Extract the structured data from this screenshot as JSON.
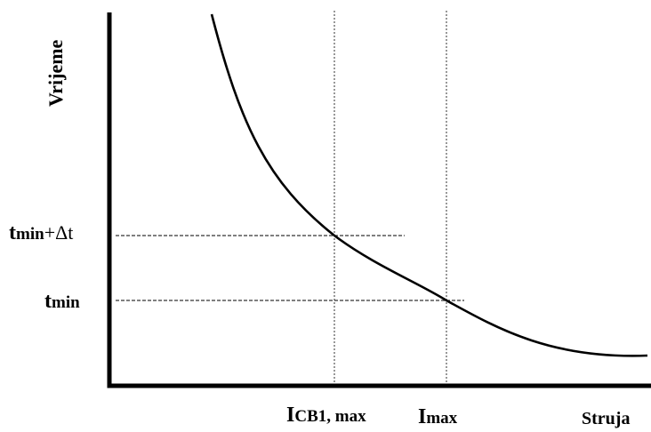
{
  "axes": {
    "y_title": "Vrijeme",
    "x_title": "Struja"
  },
  "y_markers": {
    "tmin_dt": {
      "t": "t",
      "sub": "min",
      "suffix": "+Δt"
    },
    "tmin": {
      "t": "t",
      "sub": "min"
    }
  },
  "x_markers": {
    "icb1max": {
      "i": "I",
      "sub": "CB1, max"
    },
    "imax": {
      "i": "I",
      "sub": "max"
    }
  },
  "colors": {
    "line": "#000000",
    "background": "#ffffff"
  }
}
